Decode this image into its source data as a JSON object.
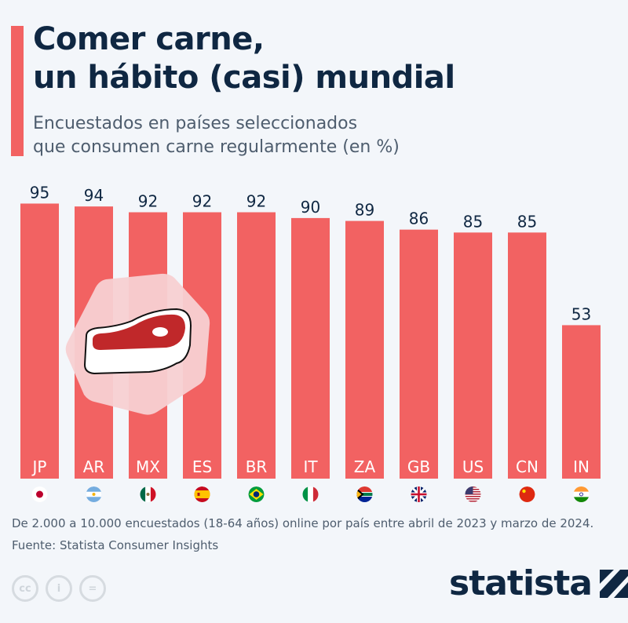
{
  "header": {
    "title_line1": "Comer carne,",
    "title_line2": "un hábito (casi) mundial",
    "subtitle_line1": "Encuestados en países seleccionados",
    "subtitle_line2": "que consumen carne regularmente (en %)"
  },
  "colors": {
    "bar": "#f26262",
    "title": "#0f2742",
    "background": "#f3f6fa",
    "icon_bg": "#f7d0d2",
    "meat": "#c0282a"
  },
  "chart_data": {
    "type": "bar",
    "title": "Comer carne, un hábito (casi) mundial",
    "categories": [
      "JP",
      "AR",
      "MX",
      "ES",
      "BR",
      "IT",
      "ZA",
      "GB",
      "US",
      "CN",
      "IN"
    ],
    "values": [
      95,
      94,
      92,
      92,
      92,
      90,
      89,
      86,
      85,
      85,
      53
    ],
    "flags": [
      "japan-flag",
      "argentina-flag",
      "mexico-flag",
      "spain-flag",
      "brazil-flag",
      "italy-flag",
      "south-africa-flag",
      "uk-flag",
      "usa-flag",
      "china-flag",
      "india-flag"
    ],
    "ylim": [
      0,
      100
    ],
    "grid": false,
    "xlabel": "",
    "ylabel": ""
  },
  "illustration": {
    "icon": "steak-icon"
  },
  "footer": {
    "note": "De 2.000 a 10.000 encuestados (18-64 años) online por país entre abril de 2023 y marzo de 2024.",
    "source": "Fuente: Statista Consumer Insights",
    "license_icons": [
      "cc",
      "by",
      "nd"
    ],
    "cc_label": "cc",
    "nd_label": "=",
    "by_label": "i",
    "logo": "statista"
  }
}
